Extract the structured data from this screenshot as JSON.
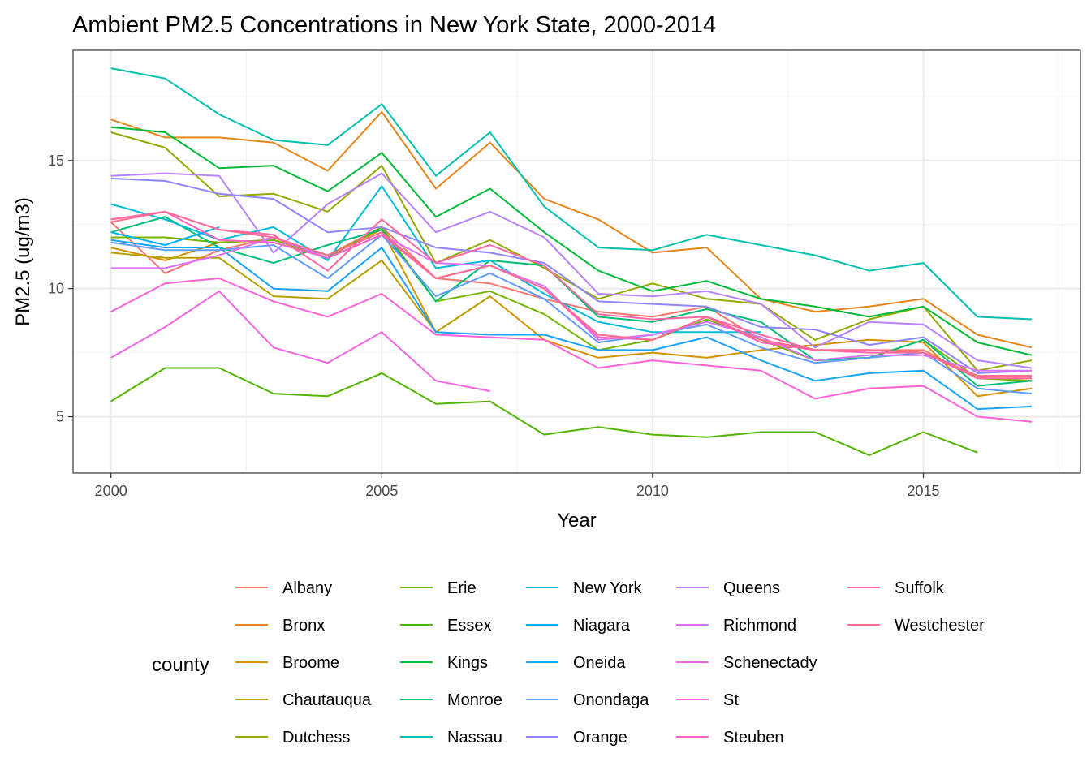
{
  "chart_data": {
    "type": "line",
    "title": "Ambient PM2.5 Concentrations in New York State, 2000-2014",
    "xlabel": "Year",
    "ylabel": "PM2.5 (ug/m3)",
    "xlim": [
      1999.3,
      2017.9
    ],
    "ylim": [
      2.8,
      19.3
    ],
    "x_ticks": [
      2000,
      2005,
      2010,
      2015
    ],
    "y_ticks": [
      5,
      10,
      15
    ],
    "grid": true,
    "legend_title": "county",
    "legend_position": "bottom",
    "series": [
      {
        "name": "Albany",
        "color": "#F8766D",
        "x": [
          2000,
          2001,
          2002,
          2003,
          2004,
          2005,
          2006,
          2007,
          2008,
          2009,
          2010,
          2011,
          2012,
          2013,
          2014,
          2015,
          2016,
          2017
        ],
        "y": [
          12.6,
          10.6,
          11.5,
          12.0,
          11.3,
          12.4,
          10.4,
          10.2,
          9.6,
          9.1,
          8.9,
          9.3,
          8.0,
          7.6,
          7.6,
          7.6,
          6.5,
          6.5
        ]
      },
      {
        "name": "Bronx",
        "color": "#E7861B",
        "x": [
          2000,
          2001,
          2002,
          2003,
          2004,
          2005,
          2006,
          2007,
          2008,
          2009,
          2010,
          2011,
          2012,
          2013,
          2014,
          2015,
          2016,
          2017
        ],
        "y": [
          16.6,
          15.9,
          15.9,
          15.7,
          14.6,
          16.9,
          13.9,
          15.7,
          13.5,
          12.7,
          11.4,
          11.6,
          9.6,
          9.1,
          9.3,
          9.6,
          8.2,
          7.7
        ]
      },
      {
        "name": "Broome",
        "color": "#D39200",
        "x": [
          2000,
          2001,
          2002,
          2003,
          2004,
          2005,
          2006,
          2007,
          2008,
          2009,
          2010,
          2011,
          2012,
          2013,
          2014,
          2015,
          2016,
          2017
        ],
        "y": [
          11.6,
          11.1,
          11.8,
          11.9,
          11.3,
          12.3,
          8.3,
          9.7,
          8.0,
          7.3,
          7.5,
          7.3,
          7.6,
          7.8,
          8.0,
          7.9,
          5.8,
          6.1
        ]
      },
      {
        "name": "Chautauqua",
        "color": "#B79F00",
        "x": [
          2000,
          2001,
          2002,
          2003,
          2004,
          2005,
          2006,
          2007
        ],
        "y": [
          11.4,
          11.2,
          11.2,
          9.7,
          9.6,
          11.1,
          8.3,
          9.7
        ]
      },
      {
        "name": "Dutchess",
        "color": "#95A900",
        "x": [
          2000,
          2001,
          2002,
          2003,
          2004,
          2005,
          2006,
          2007,
          2008,
          2009,
          2010,
          2011,
          2012,
          2013,
          2014,
          2015,
          2016,
          2017
        ],
        "y": [
          16.1,
          15.5,
          13.6,
          13.7,
          13.0,
          14.8,
          11.0,
          11.9,
          10.8,
          9.6,
          10.2,
          9.6,
          9.4,
          8.0,
          8.8,
          9.3,
          6.8,
          7.2
        ]
      },
      {
        "name": "Erie",
        "color": "#74B400",
        "x": [
          2000,
          2001,
          2002,
          2003,
          2004,
          2005,
          2006,
          2007,
          2008,
          2009,
          2010,
          2011,
          2012,
          2013,
          2014,
          2015,
          2016,
          2017
        ],
        "y": [
          12.0,
          12.0,
          11.8,
          11.9,
          11.2,
          12.4,
          9.5,
          9.9,
          9.0,
          7.6,
          8.0,
          8.8,
          8.0,
          7.2,
          7.3,
          8.0,
          6.5,
          6.4
        ]
      },
      {
        "name": "Essex",
        "color": "#53B400",
        "x": [
          2000,
          2001,
          2002,
          2003,
          2004,
          2005,
          2006,
          2007,
          2008,
          2009,
          2010,
          2011,
          2012,
          2013,
          2014,
          2015,
          2016
        ],
        "y": [
          5.6,
          6.9,
          6.9,
          5.9,
          5.8,
          6.7,
          5.5,
          5.6,
          4.3,
          4.6,
          4.3,
          4.2,
          4.4,
          4.4,
          3.5,
          4.4,
          3.6
        ]
      },
      {
        "name": "Kings",
        "color": "#00BA38",
        "x": [
          2000,
          2001,
          2002,
          2003,
          2004,
          2005,
          2006,
          2007,
          2008,
          2009,
          2010,
          2011,
          2012,
          2013,
          2014,
          2015,
          2016,
          2017
        ],
        "y": [
          16.3,
          16.1,
          14.7,
          14.8,
          13.8,
          15.3,
          12.8,
          13.9,
          12.2,
          10.7,
          9.9,
          10.3,
          9.6,
          9.3,
          8.9,
          9.3,
          7.9,
          7.4
        ]
      },
      {
        "name": "Monroe",
        "color": "#00BF74",
        "x": [
          2000,
          2001,
          2002,
          2003,
          2004,
          2005,
          2006,
          2007,
          2008,
          2009,
          2010,
          2011,
          2012,
          2013,
          2014,
          2015,
          2016,
          2017
        ],
        "y": [
          12.2,
          12.8,
          11.6,
          11.0,
          11.7,
          12.3,
          9.5,
          11.1,
          10.9,
          8.9,
          8.7,
          9.2,
          8.7,
          7.2,
          7.3,
          8.0,
          6.2,
          6.4
        ]
      },
      {
        "name": "Nassau",
        "color": "#00C0AF",
        "x": [
          2000,
          2001,
          2002,
          2003,
          2004,
          2005,
          2006,
          2007,
          2008,
          2009,
          2010,
          2011,
          2012,
          2013,
          2014,
          2015,
          2016,
          2017
        ],
        "y": [
          18.6,
          18.2,
          16.8,
          15.8,
          15.6,
          17.2,
          14.4,
          16.1,
          13.2,
          11.6,
          11.5,
          12.1,
          11.7,
          11.3,
          10.7,
          11.0,
          8.9,
          8.8
        ]
      },
      {
        "name": "New York",
        "color": "#00BCD8",
        "x": [
          2000,
          2001,
          2002,
          2003,
          2004,
          2005,
          2006,
          2007,
          2008,
          2009,
          2010,
          2011,
          2012
        ],
        "y": [
          13.3,
          12.7,
          11.9,
          12.4,
          11.1,
          14.0,
          10.8,
          11.1,
          9.8,
          8.7,
          8.3,
          8.3,
          8.3
        ]
      },
      {
        "name": "Niagara",
        "color": "#00B0F6",
        "x": [
          2000,
          2001,
          2002
        ],
        "y": [
          12.2,
          11.7,
          12.4
        ]
      },
      {
        "name": "Oneida",
        "color": "#19A3F9",
        "x": [
          2000,
          2001,
          2002,
          2003,
          2004,
          2005,
          2006,
          2007,
          2008,
          2009,
          2010,
          2011,
          2012,
          2013,
          2014,
          2015,
          2016,
          2017
        ],
        "y": [
          11.9,
          11.6,
          11.6,
          10.0,
          9.9,
          11.6,
          8.3,
          8.2,
          8.2,
          7.6,
          7.6,
          8.1,
          7.2,
          6.4,
          6.7,
          6.8,
          5.3,
          5.4
        ]
      },
      {
        "name": "Onondaga",
        "color": "#619CFF",
        "x": [
          2000,
          2001,
          2002,
          2003,
          2004,
          2005,
          2006,
          2007,
          2008,
          2009,
          2010,
          2011,
          2012,
          2013,
          2014,
          2015,
          2016,
          2017
        ],
        "y": [
          11.8,
          11.5,
          11.5,
          11.7,
          10.4,
          12.1,
          9.7,
          10.6,
          9.6,
          7.9,
          8.2,
          8.6,
          7.7,
          7.1,
          7.3,
          7.5,
          6.1,
          5.9
        ]
      },
      {
        "name": "Orange",
        "color": "#8F85FF",
        "x": [
          2000,
          2001,
          2002,
          2003,
          2004,
          2005,
          2006,
          2007,
          2008,
          2009,
          2010,
          2011,
          2012,
          2013,
          2014,
          2015,
          2016,
          2017
        ],
        "y": [
          14.3,
          14.2,
          13.7,
          13.5,
          12.2,
          12.4,
          11.6,
          11.4,
          11.0,
          9.5,
          9.4,
          9.3,
          8.5,
          8.4,
          7.8,
          8.1,
          6.7,
          6.8
        ]
      },
      {
        "name": "Queens",
        "color": "#B983FF",
        "x": [
          2000,
          2001,
          2002,
          2003,
          2004,
          2005,
          2006,
          2007,
          2008,
          2009,
          2010,
          2011,
          2012,
          2013,
          2014,
          2015,
          2016,
          2017
        ],
        "y": [
          14.4,
          14.5,
          14.4,
          11.4,
          13.3,
          14.5,
          12.2,
          13.0,
          12.0,
          9.8,
          9.7,
          9.9,
          9.4,
          7.7,
          8.7,
          8.6,
          7.2,
          6.9
        ]
      },
      {
        "name": "Richmond",
        "color": "#DB72FB",
        "x": [
          2000,
          2001,
          2002,
          2003,
          2004,
          2005,
          2006,
          2007,
          2008,
          2009,
          2010,
          2011,
          2012,
          2013,
          2014,
          2015,
          2016,
          2017
        ],
        "y": [
          10.8,
          10.8,
          11.3,
          12.0,
          11.2,
          12.1,
          11.0,
          10.9,
          10.1,
          8.0,
          8.2,
          8.7,
          8.1,
          7.2,
          7.4,
          7.4,
          6.8,
          6.8
        ]
      },
      {
        "name": "Schenectady",
        "color": "#F066E2",
        "x": [
          2000,
          2001,
          2002,
          2003,
          2004,
          2005,
          2006,
          2007
        ],
        "y": [
          7.3,
          8.5,
          9.9,
          7.7,
          7.1,
          8.3,
          6.4,
          6.0
        ]
      },
      {
        "name": "St",
        "color": "#FC61D5",
        "x": [
          2000,
          2001,
          2002,
          2003,
          2004,
          2005,
          2006,
          2007,
          2008,
          2009,
          2010,
          2011,
          2012,
          2013,
          2014,
          2015,
          2016,
          2017
        ],
        "y": [
          9.1,
          10.2,
          10.4,
          9.5,
          8.9,
          9.8,
          8.2,
          8.1,
          8.0,
          6.9,
          7.2,
          7.0,
          6.8,
          5.7,
          6.1,
          6.2,
          5.0,
          4.8
        ]
      },
      {
        "name": "Steuben",
        "color": "#FF61C2",
        "x": [
          2000,
          2001,
          2002,
          2003,
          2004,
          2005,
          2006,
          2007,
          2008,
          2009,
          2010,
          2011,
          2012,
          2013,
          2014,
          2015,
          2016,
          2017
        ],
        "y": [
          12.7,
          13.0,
          11.9,
          11.8,
          11.2,
          12.1,
          10.4,
          10.9,
          10.0,
          8.1,
          8.0,
          8.9,
          7.9,
          7.6,
          7.6,
          7.5,
          6.6,
          6.6
        ]
      },
      {
        "name": "Suffolk",
        "color": "#FF67A4",
        "x": [
          2000,
          2001,
          2002,
          2003,
          2004,
          2005,
          2006,
          2007,
          2008,
          2009,
          2010,
          2011,
          2012,
          2013,
          2014,
          2015,
          2016,
          2017
        ],
        "y": [
          12.7,
          13.0,
          12.3,
          12.1,
          10.7,
          12.7,
          11.0,
          11.7,
          10.9,
          9.0,
          8.8,
          8.9,
          8.2,
          7.6,
          7.5,
          7.5,
          6.5,
          6.5
        ]
      },
      {
        "name": "Westchester",
        "color": "#FF6C91",
        "x": [
          2000,
          2001,
          2002,
          2003,
          2004,
          2005,
          2006,
          2007,
          2008,
          2009,
          2010,
          2011,
          2012,
          2013,
          2014,
          2015,
          2016,
          2017
        ],
        "y": [
          12.6,
          13.0,
          12.3,
          12.0,
          11.3,
          12.2,
          10.4,
          10.9,
          10.0,
          8.2,
          8.0,
          8.9,
          8.0,
          7.6,
          7.6,
          7.5,
          6.6,
          6.6
        ]
      }
    ]
  }
}
